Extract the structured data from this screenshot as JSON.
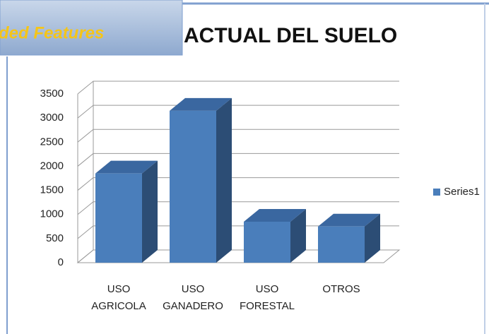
{
  "banner": "ded Features",
  "chart_data": {
    "type": "bar3d",
    "title": "ACTUAL DEL SUELO",
    "categories": [
      "USO AGRICOLA",
      "USO GANADERO",
      "USO FORESTAL",
      "OTROS"
    ],
    "series": [
      {
        "name": "Series1",
        "color": "#4a7ebb",
        "values": [
          1850,
          3150,
          850,
          750
        ]
      }
    ],
    "ylim": [
      0,
      3500
    ],
    "yticks": [
      0,
      500,
      1000,
      1500,
      2000,
      2500,
      3000,
      3500
    ],
    "grid": true,
    "legend": "right"
  }
}
